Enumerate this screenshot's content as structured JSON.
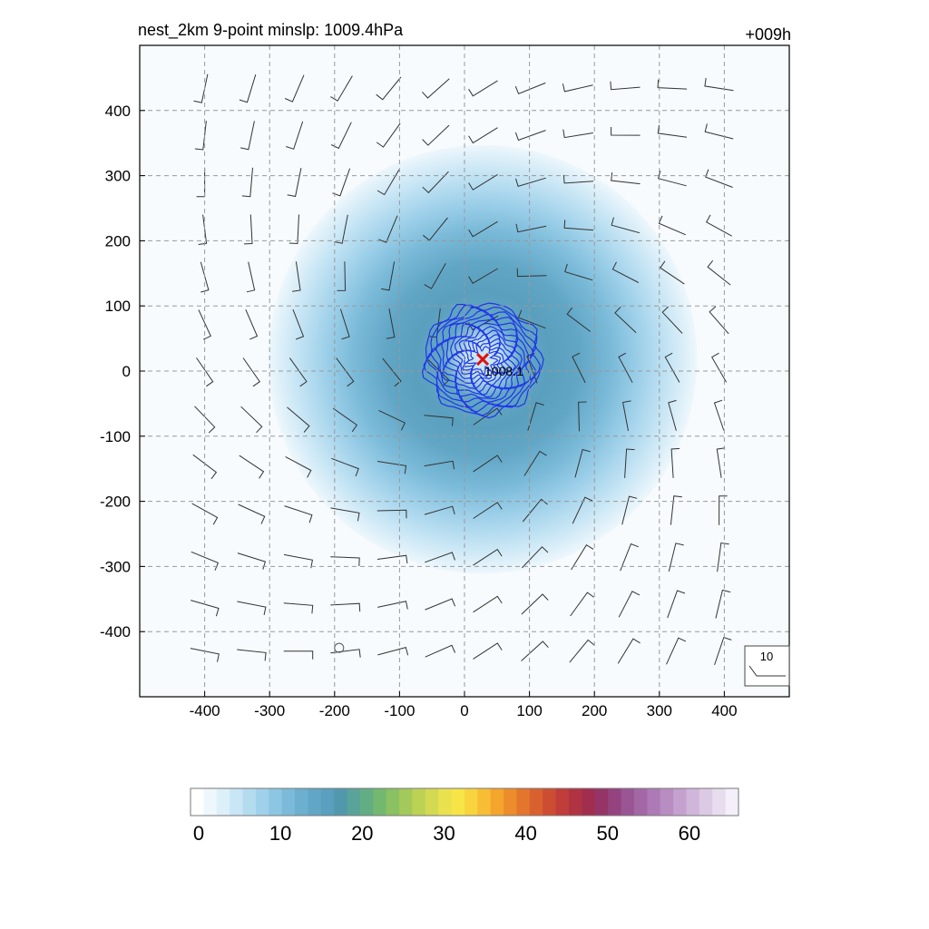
{
  "chart_data": {
    "type": "heatmap",
    "title_left": "nest_2km  9-point minslp: 1009.4hPa",
    "title_right": "+009h",
    "xlabel": "",
    "ylabel": "",
    "xlim": [
      -500,
      500
    ],
    "ylim": [
      -500,
      500
    ],
    "x_ticks": [
      -400,
      -300,
      -200,
      -100,
      0,
      100,
      200,
      300,
      400
    ],
    "y_ticks": [
      -400,
      -300,
      -200,
      -100,
      0,
      100,
      200,
      300,
      400
    ],
    "grid": true,
    "center_marker": {
      "x": 28,
      "y": 18,
      "label": "1008.1",
      "color": "#dd1111"
    },
    "open_circle": {
      "x": -193,
      "y": -425
    },
    "field_levels": [
      {
        "radius": 330,
        "value": 3
      },
      {
        "radius": 290,
        "value": 6
      },
      {
        "radius": 245,
        "value": 9
      },
      {
        "radius": 200,
        "value": 12
      },
      {
        "radius": 150,
        "value": 15
      },
      {
        "radius": 105,
        "value": 17
      },
      {
        "radius": 60,
        "value": 14
      },
      {
        "radius": 25,
        "value": 6
      }
    ],
    "wind_barb_spacing": 72,
    "reference_vector": {
      "label": "10"
    },
    "colorbar": {
      "min": 0,
      "max": 65,
      "tick_values": [
        0,
        10,
        20,
        30,
        40,
        50,
        60
      ],
      "tick_labels": [
        "0",
        "10",
        "20",
        "30",
        "40",
        "50",
        "60"
      ],
      "colors": [
        "#ffffff",
        "#eef7fc",
        "#dcf0fa",
        "#c8e6f5",
        "#b4dcef",
        "#a0d1ea",
        "#8cc6e3",
        "#7bbbd9",
        "#6cafcf",
        "#62a6c6",
        "#5a9fbe",
        "#5298ad",
        "#5aa39a",
        "#63ad84",
        "#74b86f",
        "#8ac163",
        "#a2c95a",
        "#bcd254",
        "#d3da51",
        "#e9e24e",
        "#f7e547",
        "#f8d43e",
        "#f7bd34",
        "#f3a52c",
        "#ec8c2b",
        "#e3752d",
        "#d9602f",
        "#cd4d33",
        "#c03d3a",
        "#b03342",
        "#a12e4f",
        "#953567",
        "#95437f",
        "#9a5594",
        "#a367a6",
        "#ad7ab5",
        "#b88dc2",
        "#c4a1ce",
        "#d0b6da",
        "#dccae5",
        "#e8ddef",
        "#f4eff8"
      ]
    }
  }
}
